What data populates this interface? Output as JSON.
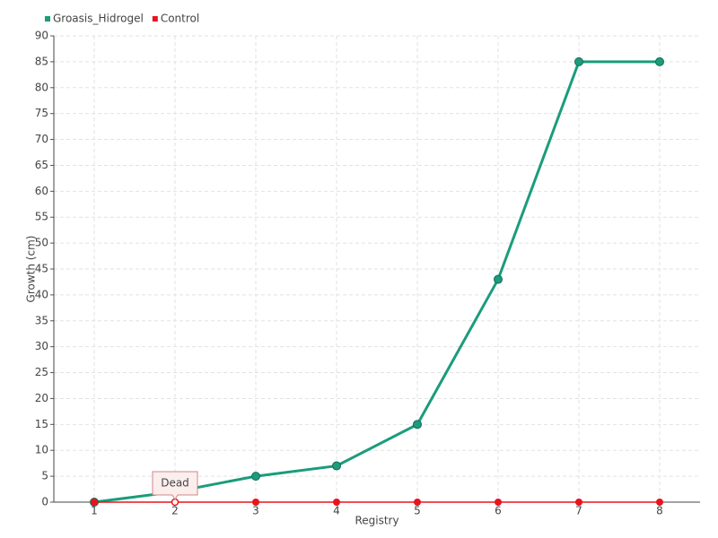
{
  "chart_data": {
    "type": "line",
    "x_label": "Registry",
    "y_label": "Growth (cm)",
    "categories": [
      "1",
      "2",
      "3",
      "4",
      "5",
      "6",
      "7",
      "8"
    ],
    "series": [
      {
        "name": "Groasis_Hidrogel",
        "color": "#1b9c7c",
        "values": [
          0,
          2,
          5,
          7,
          15,
          43,
          85,
          85
        ]
      },
      {
        "name": "Control",
        "color": "#e8141e",
        "values": [
          0,
          0,
          0,
          0,
          0,
          0,
          0,
          0
        ]
      }
    ],
    "annotations": [
      {
        "text": "Dead",
        "series": 1,
        "index": 1
      }
    ],
    "ylim": [
      0,
      90
    ],
    "yticks": [
      0,
      5,
      10,
      15,
      20,
      25,
      30,
      35,
      40,
      45,
      50,
      55,
      60,
      65,
      70,
      75,
      80,
      85,
      90
    ],
    "grid": true
  }
}
